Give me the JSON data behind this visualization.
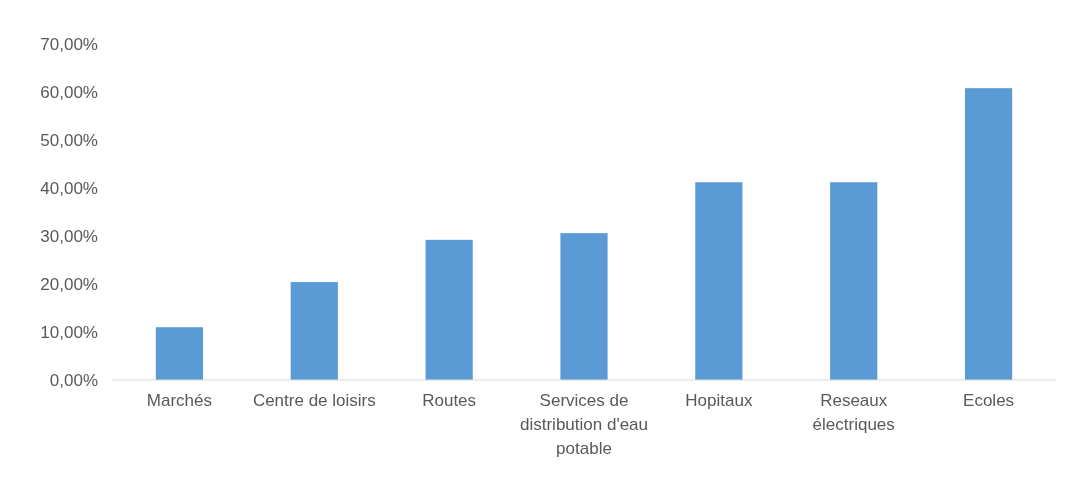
{
  "chart_data": {
    "type": "bar",
    "categories": [
      "Marchés",
      "Centre de loisirs",
      "Routes",
      "Services de distribution d'eau potable",
      "Hopitaux",
      "Reseaux électriques",
      "Ecoles"
    ],
    "values": [
      11.0,
      20.4,
      29.2,
      30.6,
      41.2,
      41.2,
      60.8
    ],
    "color": "#5b9bd5",
    "ylim": [
      0,
      70
    ],
    "yticks": [
      {
        "value": 0,
        "label": "0,00%"
      },
      {
        "value": 10,
        "label": "10,00%"
      },
      {
        "value": 20,
        "label": "20,00%"
      },
      {
        "value": 30,
        "label": "30,00%"
      },
      {
        "value": 40,
        "label": "40,00%"
      },
      {
        "value": 50,
        "label": "50,00%"
      },
      {
        "value": 60,
        "label": "60,00%"
      },
      {
        "value": 70,
        "label": "70,00%"
      }
    ],
    "grid": false
  }
}
